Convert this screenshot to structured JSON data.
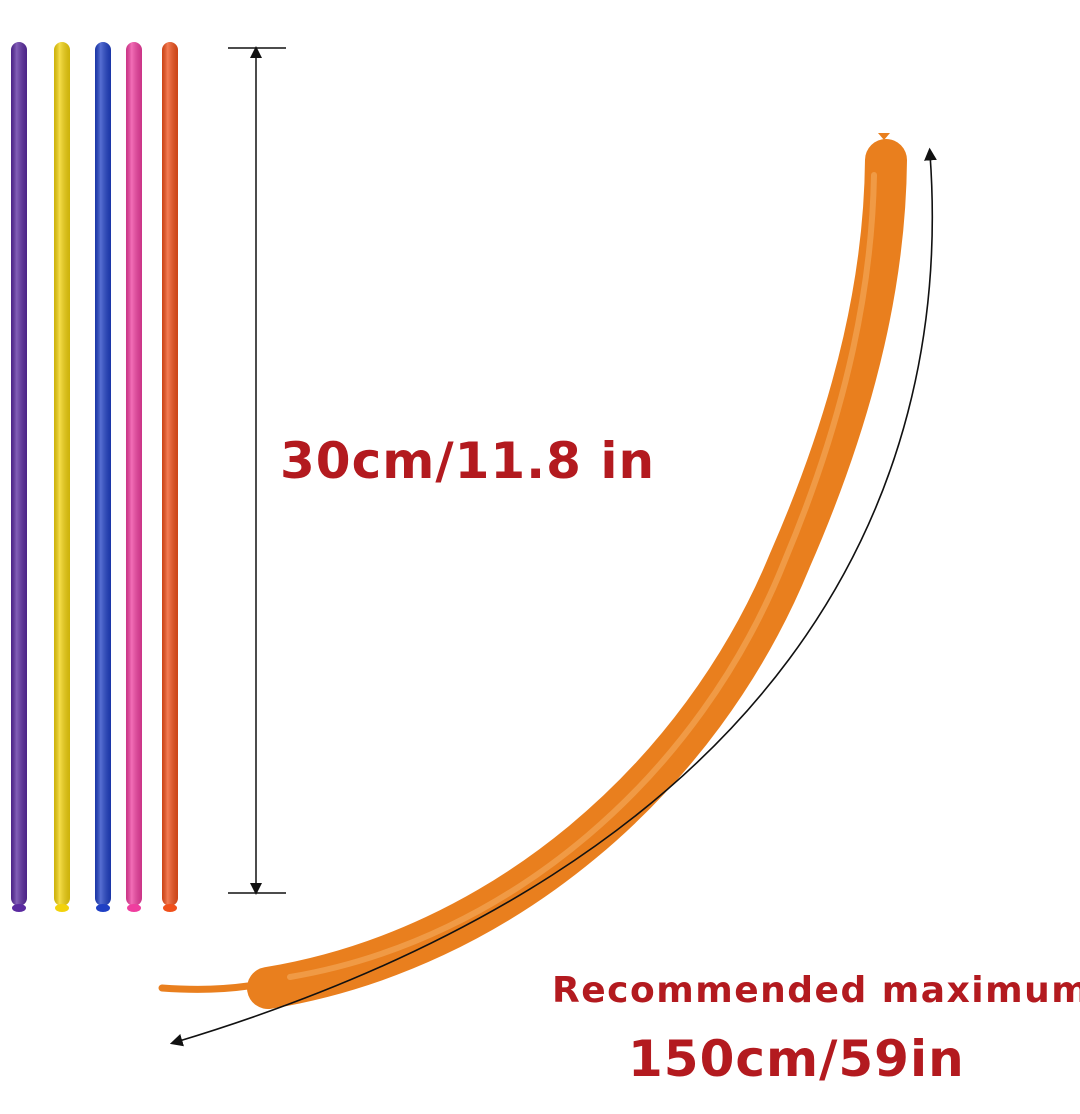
{
  "labels": {
    "uninflated_length": "30cm/11.8 in",
    "recommended": "Recommended  maximum",
    "max_length": "150cm/59in"
  },
  "balloons": [
    {
      "name": "purple",
      "color": "#5a2aa0"
    },
    {
      "name": "yellow",
      "color": "#f2d20c"
    },
    {
      "name": "blue",
      "color": "#1f3fc4"
    },
    {
      "name": "pink",
      "color": "#ef3e9f"
    },
    {
      "name": "orange-red",
      "color": "#f0501a"
    }
  ],
  "inflated_balloon": {
    "color": "#e97f1e"
  },
  "text_color": "#b31a1f"
}
